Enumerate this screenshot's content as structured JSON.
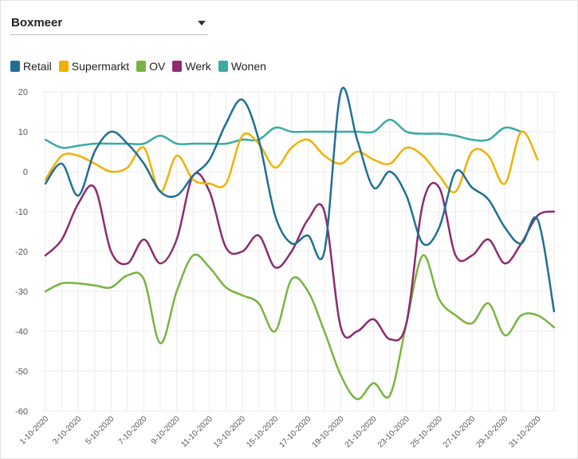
{
  "filter": {
    "selected": "Boxmeer"
  },
  "colors": {
    "Retail": "#1f6f93",
    "Supermarkt": "#f0b100",
    "OV": "#7ab341",
    "Werk": "#8c2b6e",
    "Wonen": "#3aaaa5",
    "grid": "#ececec"
  },
  "chart_data": {
    "type": "line",
    "title": "",
    "xlabel": "",
    "ylabel": "",
    "ylim": [
      -60,
      20
    ],
    "yticks": [
      "20",
      "10",
      "0",
      "-10",
      "-20",
      "-30",
      "-40",
      "-50",
      "-60"
    ],
    "x": [
      "1-10-2020",
      "2-10-2020",
      "3-10-2020",
      "4-10-2020",
      "5-10-2020",
      "6-10-2020",
      "7-10-2020",
      "8-10-2020",
      "9-10-2020",
      "10-10-2020",
      "11-10-2020",
      "12-10-2020",
      "13-10-2020",
      "14-10-2020",
      "15-10-2020",
      "16-10-2020",
      "17-10-2020",
      "18-10-2020",
      "19-10-2020",
      "20-10-2020",
      "21-10-2020",
      "22-10-2020",
      "23-10-2020",
      "24-10-2020",
      "25-10-2020",
      "26-10-2020",
      "27-10-2020",
      "28-10-2020",
      "29-10-2020",
      "30-10-2020",
      "31-10-2020",
      "1-11-2020"
    ],
    "xtick_labels": [
      "1-10-2020",
      "3-10-2020",
      "5-10-2020",
      "7-10-2020",
      "9-10-2020",
      "11-10-2020",
      "13-10-2020",
      "15-10-2020",
      "17-10-2020",
      "19-10-2020",
      "21-10-2020",
      "23-10-2020",
      "25-10-2020",
      "27-10-2020",
      "29-10-2020",
      "31-10-2020"
    ],
    "legend": [
      "Retail",
      "Supermarkt",
      "OV",
      "Werk",
      "Wonen"
    ],
    "legend_position": "top-left",
    "series": [
      {
        "name": "Retail",
        "values": [
          -3,
          2,
          -6,
          5,
          10,
          7,
          2,
          -5,
          -6,
          -1,
          3,
          12,
          18,
          8,
          -11,
          -18,
          -16,
          -20,
          20,
          8,
          -4,
          0,
          -6,
          -18,
          -14,
          0,
          -4,
          -7,
          -14,
          -18,
          -12,
          -35
        ]
      },
      {
        "name": "Supermarkt",
        "values": [
          -2,
          4,
          4,
          2,
          0,
          1,
          6,
          -5,
          4,
          -2,
          -3,
          -3,
          9,
          7,
          1,
          6,
          8,
          4,
          2,
          5,
          3,
          2,
          6,
          4,
          -1,
          -5,
          5,
          4,
          -3,
          10,
          3,
          null
        ]
      },
      {
        "name": "OV",
        "values": [
          -30,
          -28,
          -28,
          -28.5,
          -29,
          -26,
          -27,
          -43,
          -30,
          -21,
          -24,
          -29,
          -31,
          -33,
          -40,
          -27,
          -30,
          -40,
          -51,
          -57,
          -53,
          -56,
          -38,
          -21,
          -32,
          -36,
          -38,
          -33,
          -41,
          -36,
          -36,
          -39
        ]
      },
      {
        "name": "Werk",
        "values": [
          -21,
          -17,
          -8,
          -4,
          -20,
          -23,
          -17,
          -23,
          -17,
          -1,
          -5,
          -19,
          -20,
          -16,
          -24,
          -20,
          -12,
          -10,
          -39,
          -40,
          -37,
          -42,
          -38,
          -8,
          -4,
          -21,
          -21,
          -17,
          -23,
          -18,
          -11,
          -10
        ]
      },
      {
        "name": "Wonen",
        "values": [
          8,
          6,
          6.5,
          7,
          7,
          7,
          7,
          9,
          7,
          7,
          7,
          7,
          8,
          8,
          11,
          10,
          10,
          10,
          10,
          10,
          10,
          13,
          10,
          9.5,
          9.5,
          9,
          8,
          8,
          11,
          10,
          null,
          null
        ]
      }
    ]
  }
}
